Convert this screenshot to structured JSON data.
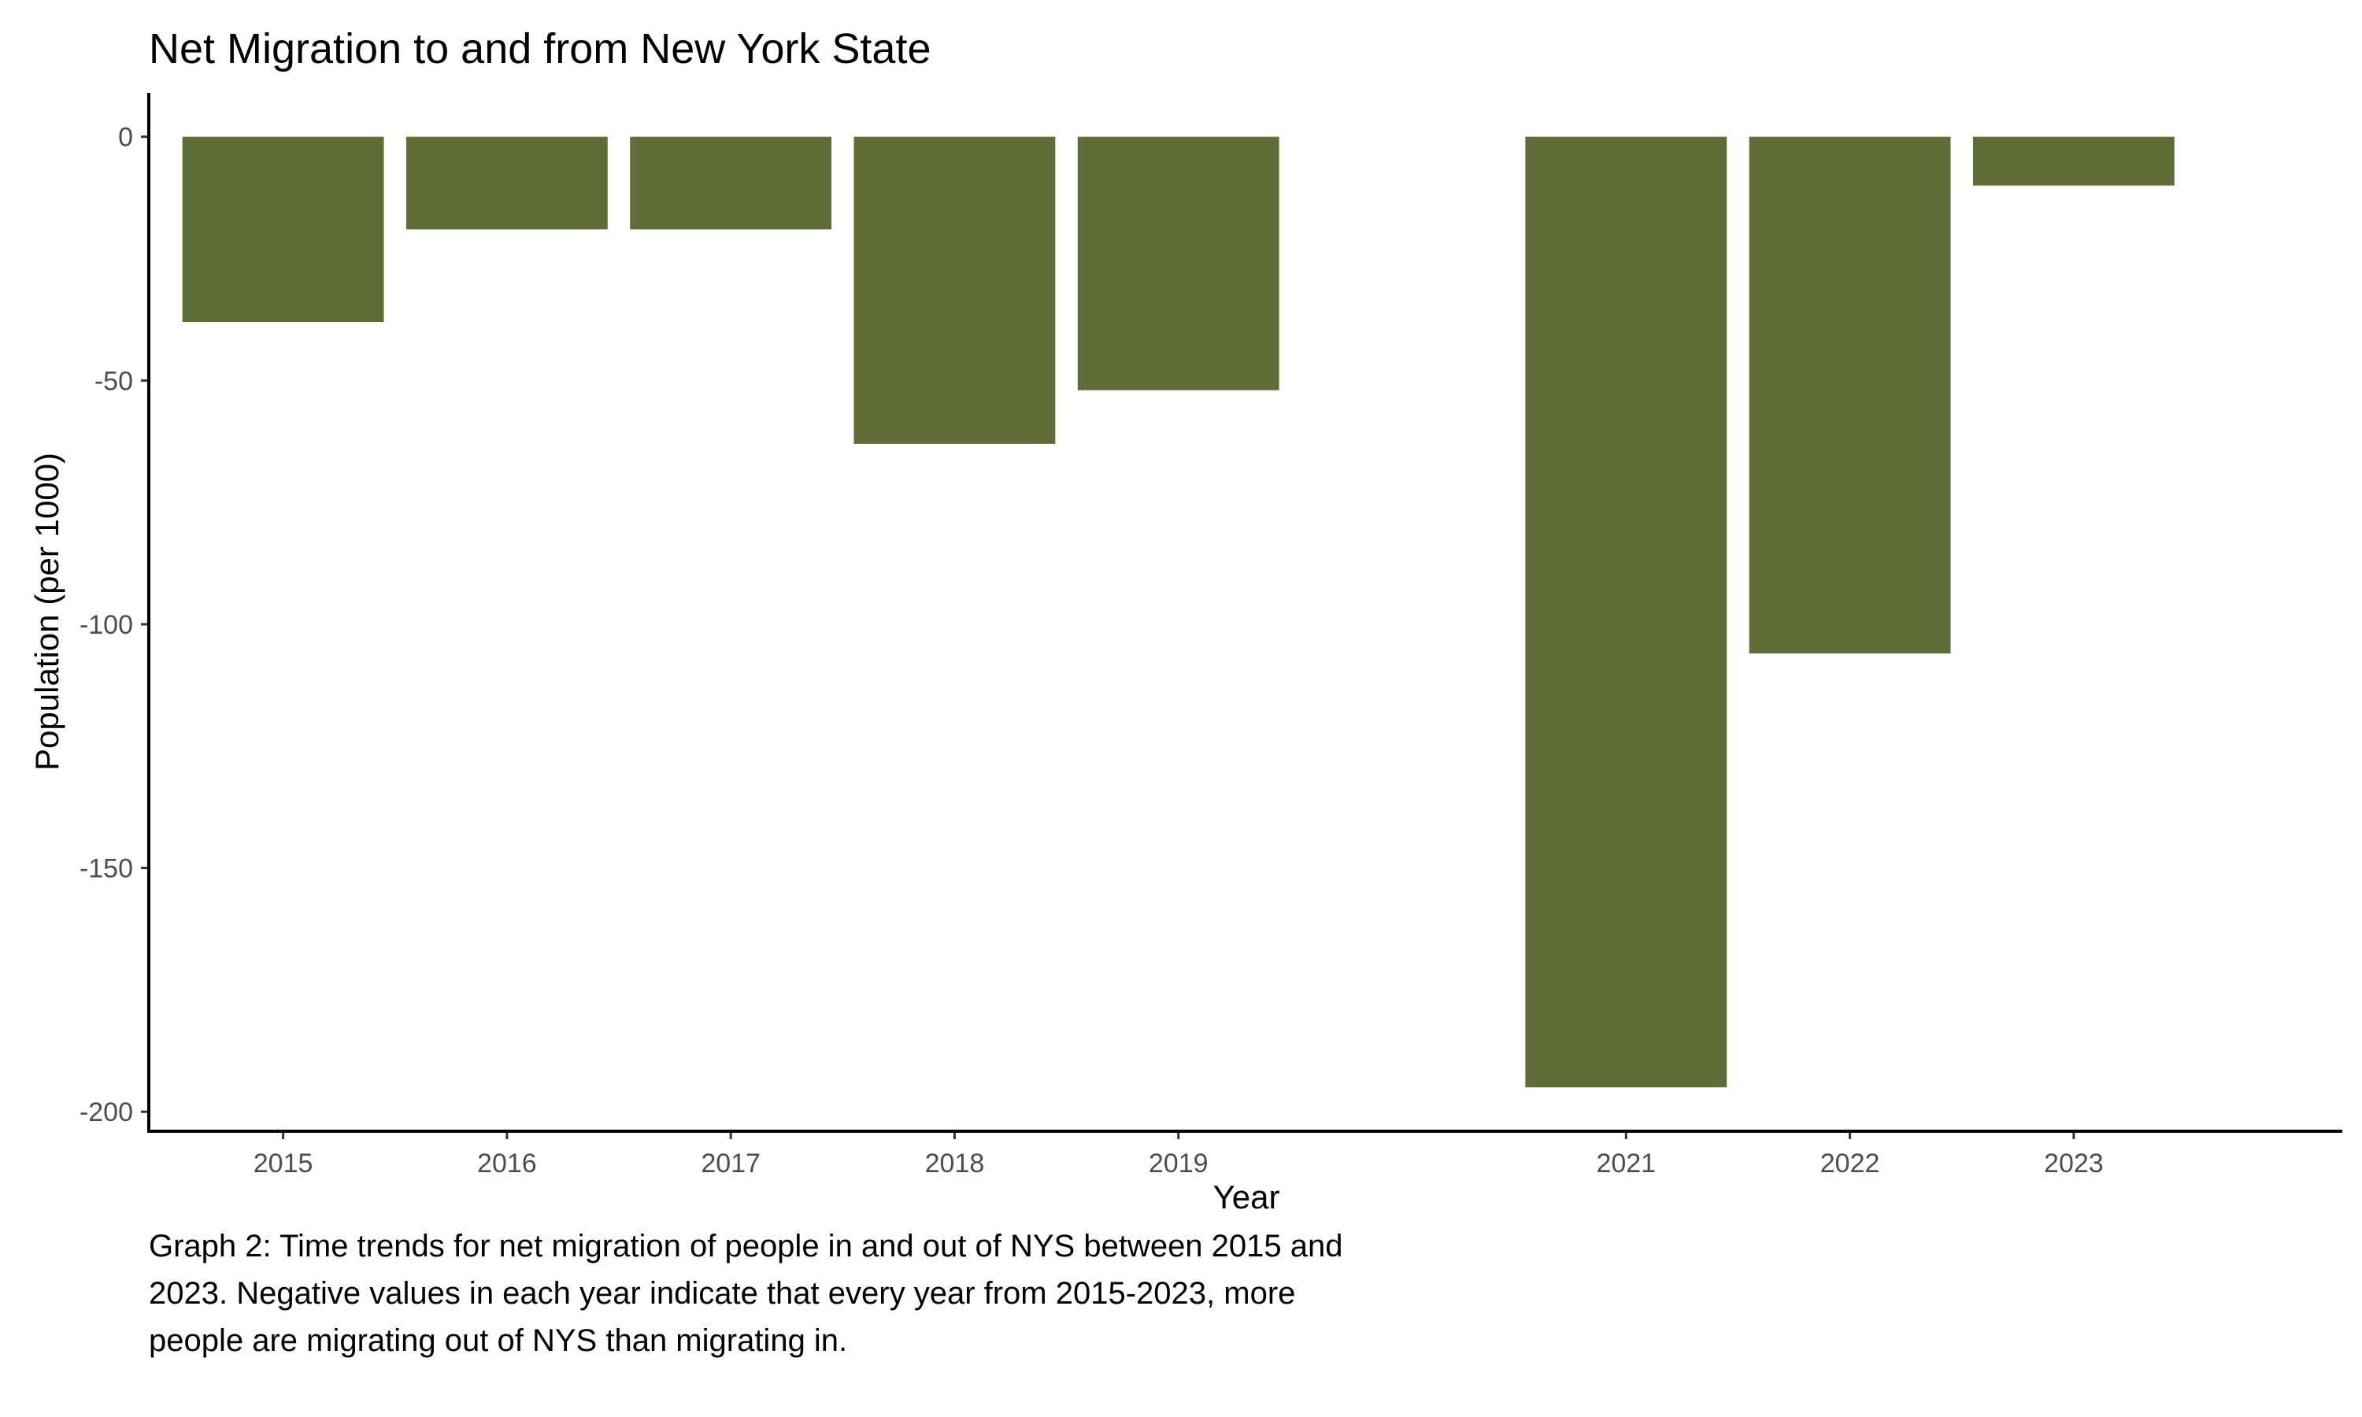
{
  "chart_data": {
    "type": "bar",
    "title": "Net Migration to and from New York State",
    "xlabel": "Year",
    "ylabel": "Population (per 1000)",
    "categories": [
      "2015",
      "2016",
      "2017",
      "2018",
      "2019",
      "2021",
      "2022",
      "2023"
    ],
    "x": [
      2015,
      2016,
      2017,
      2018,
      2019,
      2021,
      2022,
      2023
    ],
    "values": [
      -38,
      -19,
      -19,
      -63,
      -52,
      -195,
      -106,
      -10
    ],
    "xlim": [
      2014.4,
      2024.2
    ],
    "ylim": [
      -204,
      9
    ],
    "yticks": [
      0,
      -50,
      -100,
      -150,
      -200
    ],
    "grid": false,
    "bar_color": "#5f6d37"
  },
  "caption": "Graph 2: Time trends for net migration of people in and out of NYS between 2015 and 2023. Negative values in each year indicate that every year from 2015-2023, more people are migrating out of NYS than migrating in."
}
